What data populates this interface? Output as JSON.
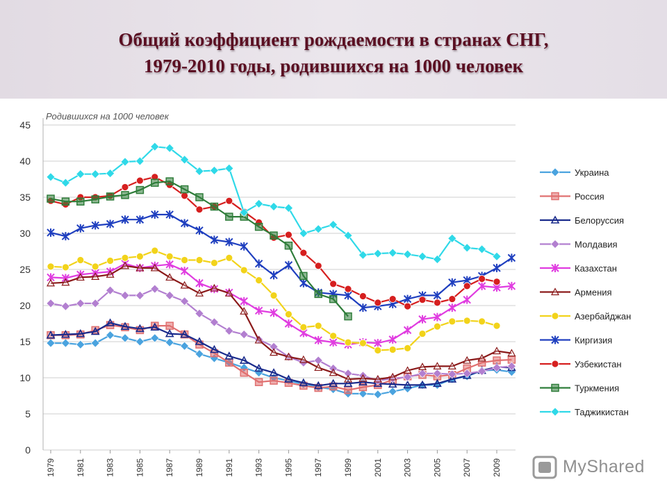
{
  "slide": {
    "title_line1": "Общий коэффициент рождаемости в странах СНГ,",
    "title_line2": "1979-2010 годы, родившихся на 1000 человек"
  },
  "watermark": {
    "text": "MyShared"
  },
  "colors": {
    "background": "#ffffff",
    "title": "#5a0f22",
    "grid": "#c8c8c8"
  },
  "chart_data": {
    "type": "line",
    "ylabel": "Родившихся на 1000 человек",
    "ylim": [
      0,
      45
    ],
    "yticks": [
      0,
      5,
      10,
      15,
      20,
      25,
      30,
      35,
      40,
      45
    ],
    "x": [
      1979,
      1980,
      1981,
      1982,
      1983,
      1984,
      1985,
      1986,
      1987,
      1988,
      1989,
      1990,
      1991,
      1992,
      1993,
      1994,
      1995,
      1996,
      1997,
      1998,
      1999,
      2000,
      2001,
      2002,
      2003,
      2004,
      2005,
      2006,
      2007,
      2008,
      2009,
      2010
    ],
    "xtick_labels": [
      "1979",
      "1981",
      "1983",
      "1985",
      "1987",
      "1989",
      "1991",
      "1993",
      "1995",
      "1997",
      "1999",
      "2001",
      "2003",
      "2005",
      "2007",
      "2009"
    ],
    "grid": "horizontal",
    "legend_position": "right",
    "series": [
      {
        "name": "Украина",
        "color": "#4aa3df",
        "marker": "diamond",
        "values": [
          14.8,
          14.8,
          14.6,
          14.8,
          15.9,
          15.5,
          15.0,
          15.5,
          14.9,
          14.4,
          13.3,
          12.7,
          12.1,
          11.4,
          10.7,
          10.0,
          9.6,
          9.1,
          8.7,
          8.4,
          7.8,
          7.8,
          7.7,
          8.1,
          8.5,
          9.0,
          9.0,
          9.8,
          10.2,
          11.0,
          11.1,
          10.8
        ]
      },
      {
        "name": "Россия",
        "color": "#e07070",
        "marker": "square",
        "values": [
          15.9,
          15.9,
          16.0,
          16.6,
          17.3,
          17.0,
          16.6,
          17.2,
          17.2,
          16.0,
          14.6,
          13.4,
          12.1,
          10.7,
          9.4,
          9.6,
          9.3,
          8.9,
          8.6,
          8.8,
          8.3,
          8.7,
          9.0,
          9.7,
          10.2,
          10.4,
          10.2,
          10.4,
          11.3,
          12.1,
          12.4,
          12.5
        ]
      },
      {
        "name": "Белоруссия",
        "color": "#1a2b8c",
        "marker": "triangle",
        "values": [
          15.9,
          16.0,
          16.1,
          16.4,
          17.6,
          17.1,
          16.8,
          17.0,
          16.1,
          16.0,
          15.0,
          13.9,
          13.0,
          12.4,
          11.3,
          10.7,
          9.8,
          9.3,
          8.9,
          9.2,
          9.2,
          9.4,
          9.2,
          9.1,
          9.0,
          9.0,
          9.2,
          9.8,
          10.3,
          11.0,
          11.5,
          11.4
        ]
      },
      {
        "name": "Молдавия",
        "color": "#b27fd0",
        "marker": "diamond",
        "values": [
          20.3,
          19.9,
          20.3,
          20.3,
          22.1,
          21.4,
          21.4,
          22.3,
          21.4,
          20.6,
          18.9,
          17.7,
          16.5,
          16.0,
          15.3,
          14.3,
          12.9,
          12.1,
          12.4,
          11.3,
          10.6,
          10.3,
          9.6,
          9.9,
          10.1,
          10.6,
          10.6,
          10.5,
          10.6,
          10.9,
          11.4,
          11.6
        ]
      },
      {
        "name": "Казахстан",
        "color": "#e03ce0",
        "marker": "star",
        "values": [
          23.9,
          23.8,
          24.3,
          24.5,
          24.7,
          25.8,
          25.2,
          25.5,
          25.7,
          24.8,
          23.1,
          22.3,
          21.8,
          20.6,
          19.3,
          19.0,
          17.5,
          16.2,
          15.2,
          14.9,
          14.6,
          14.9,
          14.8,
          15.3,
          16.6,
          18.1,
          18.4,
          19.7,
          20.8,
          22.7,
          22.5,
          22.7
        ]
      },
      {
        "name": "Армения",
        "color": "#8b1a1a",
        "marker": "triangle-open",
        "values": [
          23.1,
          23.2,
          23.9,
          24.0,
          24.3,
          25.5,
          25.2,
          25.2,
          23.9,
          22.8,
          21.7,
          22.4,
          21.7,
          19.2,
          15.2,
          13.5,
          12.9,
          12.5,
          11.4,
          10.7,
          9.8,
          9.9,
          9.8,
          10.1,
          11.0,
          11.5,
          11.6,
          11.6,
          12.4,
          12.7,
          13.7,
          13.4
        ]
      },
      {
        "name": "Азербайджан",
        "color": "#f2d31a",
        "marker": "circle",
        "values": [
          25.4,
          25.3,
          26.3,
          25.4,
          26.2,
          26.6,
          26.8,
          27.6,
          26.8,
          26.3,
          26.3,
          25.9,
          26.6,
          24.9,
          23.5,
          21.4,
          18.8,
          17.0,
          17.2,
          15.8,
          14.9,
          14.8,
          13.8,
          13.9,
          14.1,
          16.1,
          17.1,
          17.8,
          17.9,
          17.8,
          17.2,
          null
        ]
      },
      {
        "name": "Киргизия",
        "color": "#1f3fbf",
        "marker": "star",
        "values": [
          30.1,
          29.6,
          30.7,
          31.1,
          31.3,
          31.9,
          31.9,
          32.6,
          32.6,
          31.4,
          30.4,
          29.1,
          28.8,
          28.2,
          25.8,
          24.2,
          25.6,
          23.1,
          21.8,
          21.6,
          21.4,
          19.7,
          19.9,
          20.2,
          20.9,
          21.4,
          21.4,
          23.2,
          23.5,
          24.1,
          25.2,
          26.6
        ]
      },
      {
        "name": "Узбекистан",
        "color": "#d61f1f",
        "marker": "circle",
        "values": [
          34.5,
          34.0,
          35.0,
          35.0,
          35.2,
          36.4,
          37.3,
          37.8,
          36.7,
          35.2,
          33.3,
          33.7,
          34.5,
          33.0,
          31.5,
          29.4,
          29.8,
          27.3,
          25.5,
          23.0,
          22.3,
          21.3,
          20.4,
          20.9,
          19.9,
          20.8,
          20.4,
          20.9,
          22.7,
          23.7,
          23.3,
          null
        ]
      },
      {
        "name": "Туркмения",
        "color": "#2f7d3a",
        "marker": "square",
        "values": [
          34.8,
          34.4,
          34.4,
          34.7,
          35.1,
          35.3,
          36.0,
          37.0,
          37.2,
          36.1,
          35.0,
          33.7,
          32.3,
          32.3,
          30.9,
          29.7,
          28.3,
          24.1,
          21.6,
          20.9,
          18.5,
          null,
          null,
          null,
          null,
          null,
          null,
          null,
          null,
          null,
          null,
          null
        ]
      },
      {
        "name": "Таджикистан",
        "color": "#2fd9e8",
        "marker": "diamond",
        "values": [
          37.8,
          37.0,
          38.2,
          38.2,
          38.3,
          39.9,
          40.0,
          42.0,
          41.8,
          40.2,
          38.6,
          38.7,
          39.0,
          32.9,
          34.1,
          33.7,
          33.5,
          30.0,
          30.6,
          31.2,
          29.7,
          27.0,
          27.2,
          27.3,
          27.1,
          26.8,
          26.4,
          29.3,
          28.0,
          27.8,
          26.8,
          null
        ]
      }
    ]
  }
}
